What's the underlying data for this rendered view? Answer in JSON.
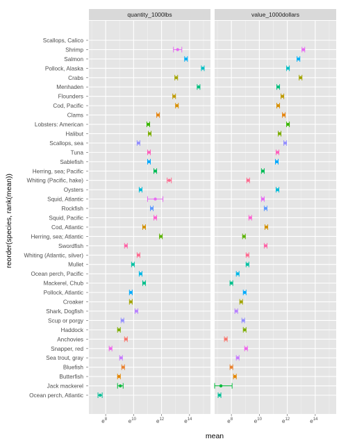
{
  "chart_data": {
    "type": "scatter",
    "xlabel": "mean",
    "ylabel": "reorder(species, rank(mean))",
    "panels": [
      "quantity_1000lbs",
      "value_1000dollars"
    ],
    "xlim": [
      6.8,
      15.5
    ],
    "x_ticks": [
      {
        "value": 8,
        "label": "e",
        "exp": "8"
      },
      {
        "value": 10,
        "label": "e",
        "exp": "10"
      },
      {
        "value": 12,
        "label": "e",
        "exp": "12"
      },
      {
        "value": 14,
        "label": "e",
        "exp": "14"
      }
    ],
    "grid": true,
    "legend": "none",
    "categories": [
      "Scallops, Calico",
      "Shrimp",
      "Salmon",
      "Pollock, Alaska",
      "Crabs",
      "Menhaden",
      "Flounders",
      "Cod, Pacific",
      "Clams",
      "Lobsters: American",
      "Halibut",
      "Scallops, sea",
      "Tuna",
      "Sablefish",
      "Herring, sea; Pacific",
      "Whiting (Pacific, hake)",
      "Oysters",
      "Squid, Atlantic",
      "Rockfish",
      "Squid, Pacific",
      "Cod, Atlantic",
      "Herring, sea; Atlantic",
      "Swordfish",
      "Whiting (Atlantic, silver)",
      "Mullet",
      "Ocean perch, Pacific",
      "Mackerel, Chub",
      "Pollock, Atlantic",
      "Croaker",
      "Shark, Dogfish",
      "Scup or porgy",
      "Haddock",
      "Anchovies",
      "Snapper, red",
      "Sea trout, gray",
      "Bluefish",
      "Butterfish",
      "Jack mackerel",
      "Ocean perch, Atlantic"
    ],
    "colors": [
      "#f564e3",
      "#e76bf3",
      "#00b0f6",
      "#00bfc4",
      "#a3a500",
      "#00bf7d",
      "#c09b00",
      "#d89000",
      "#e68613",
      "#39b600",
      "#7cae00",
      "#9590ff",
      "#ff62bc",
      "#00a9ff",
      "#00bc56",
      "#ff6c91",
      "#00bcd8",
      "#e76bf3",
      "#619cff",
      "#fd61d1",
      "#d39200",
      "#5bb300",
      "#ff66a8",
      "#ff6c91",
      "#00c1a3",
      "#00b8e7",
      "#00c08b",
      "#00abfd",
      "#a3a500",
      "#b983ff",
      "#9590ff",
      "#7cae00",
      "#f8766d",
      "#ef67eb",
      "#c77cff",
      "#ea8331",
      "#e58700",
      "#00ba38",
      "#00bf96"
    ],
    "series": [
      {
        "name": "quantity_1000lbs",
        "points": [
          {
            "x": null
          },
          {
            "x": 13.15,
            "lo": 12.85,
            "hi": 13.45
          },
          {
            "x": 13.75,
            "lo": 13.65,
            "hi": 13.85
          },
          {
            "x": 14.95,
            "lo": 14.85,
            "hi": 15.05
          },
          {
            "x": 13.05,
            "lo": 12.95,
            "hi": 13.15
          },
          {
            "x": 14.65,
            "lo": 14.55,
            "hi": 14.75
          },
          {
            "x": 12.9,
            "lo": 12.8,
            "hi": 13.0
          },
          {
            "x": 13.1,
            "lo": 13.0,
            "hi": 13.2
          },
          {
            "x": 11.75,
            "lo": 11.65,
            "hi": 11.85
          },
          {
            "x": 11.05,
            "lo": 10.95,
            "hi": 11.15
          },
          {
            "x": 11.15,
            "lo": 11.05,
            "hi": 11.25
          },
          {
            "x": 10.35,
            "lo": 10.25,
            "hi": 10.45
          },
          {
            "x": 11.1,
            "lo": 11.0,
            "hi": 11.2
          },
          {
            "x": 11.1,
            "lo": 11.0,
            "hi": 11.2
          },
          {
            "x": 11.55,
            "lo": 11.45,
            "hi": 11.65
          },
          {
            "x": 12.55,
            "lo": 12.4,
            "hi": 12.7
          },
          {
            "x": 10.5,
            "lo": 10.4,
            "hi": 10.6
          },
          {
            "x": 11.55,
            "lo": 11.0,
            "hi": 12.1
          },
          {
            "x": 11.3,
            "lo": 11.2,
            "hi": 11.4
          },
          {
            "x": 11.55,
            "lo": 11.45,
            "hi": 11.65
          },
          {
            "x": 10.75,
            "lo": 10.65,
            "hi": 10.85
          },
          {
            "x": 11.95,
            "lo": 11.85,
            "hi": 12.05
          },
          {
            "x": 9.45,
            "lo": 9.35,
            "hi": 9.55
          },
          {
            "x": 10.35,
            "lo": 10.25,
            "hi": 10.45
          },
          {
            "x": 9.95,
            "lo": 9.85,
            "hi": 10.05
          },
          {
            "x": 10.5,
            "lo": 10.4,
            "hi": 10.6
          },
          {
            "x": 10.75,
            "lo": 10.65,
            "hi": 10.85
          },
          {
            "x": 9.8,
            "lo": 9.7,
            "hi": 9.9
          },
          {
            "x": 9.8,
            "lo": 9.7,
            "hi": 9.9
          },
          {
            "x": 10.2,
            "lo": 10.1,
            "hi": 10.3
          },
          {
            "x": 9.2,
            "lo": 9.1,
            "hi": 9.3
          },
          {
            "x": 8.95,
            "lo": 8.85,
            "hi": 9.05
          },
          {
            "x": 9.45,
            "lo": 9.35,
            "hi": 9.55
          },
          {
            "x": 8.35,
            "lo": 8.25,
            "hi": 8.45
          },
          {
            "x": 9.1,
            "lo": 9.0,
            "hi": 9.2
          },
          {
            "x": 9.25,
            "lo": 9.15,
            "hi": 9.35
          },
          {
            "x": 8.95,
            "lo": 8.85,
            "hi": 9.05
          },
          {
            "x": 9.05,
            "lo": 8.85,
            "hi": 9.25
          },
          {
            "x": 7.6,
            "lo": 7.45,
            "hi": 7.75
          }
        ]
      },
      {
        "name": "value_1000dollars",
        "points": [
          {
            "x": null
          },
          {
            "x": 13.15,
            "lo": 13.05,
            "hi": 13.25
          },
          {
            "x": 12.8,
            "lo": 12.7,
            "hi": 12.9
          },
          {
            "x": 12.05,
            "lo": 11.95,
            "hi": 12.15
          },
          {
            "x": 12.95,
            "lo": 12.85,
            "hi": 13.05
          },
          {
            "x": 11.35,
            "lo": 11.25,
            "hi": 11.45
          },
          {
            "x": 11.65,
            "lo": 11.55,
            "hi": 11.75
          },
          {
            "x": 11.35,
            "lo": 11.25,
            "hi": 11.45
          },
          {
            "x": 11.75,
            "lo": 11.65,
            "hi": 11.85
          },
          {
            "x": 12.05,
            "lo": 11.95,
            "hi": 12.15
          },
          {
            "x": 11.45,
            "lo": 11.35,
            "hi": 11.55
          },
          {
            "x": 11.85,
            "lo": 11.75,
            "hi": 11.95
          },
          {
            "x": 11.3,
            "lo": 11.2,
            "hi": 11.4
          },
          {
            "x": 11.25,
            "lo": 11.15,
            "hi": 11.35
          },
          {
            "x": 10.25,
            "lo": 10.15,
            "hi": 10.35
          },
          {
            "x": 9.2,
            "lo": 9.1,
            "hi": 9.3
          },
          {
            "x": 11.3,
            "lo": 11.2,
            "hi": 11.4
          },
          {
            "x": 10.25,
            "lo": 10.15,
            "hi": 10.35
          },
          {
            "x": 10.45,
            "lo": 10.35,
            "hi": 10.55
          },
          {
            "x": 9.35,
            "lo": 9.25,
            "hi": 9.45
          },
          {
            "x": 10.5,
            "lo": 10.4,
            "hi": 10.6
          },
          {
            "x": 8.9,
            "lo": 8.8,
            "hi": 9.0
          },
          {
            "x": 10.45,
            "lo": 10.35,
            "hi": 10.55
          },
          {
            "x": 9.15,
            "lo": 9.05,
            "hi": 9.25
          },
          {
            "x": 9.15,
            "lo": 9.05,
            "hi": 9.25
          },
          {
            "x": 8.45,
            "lo": 8.35,
            "hi": 8.55
          },
          {
            "x": 8.0,
            "lo": 7.9,
            "hi": 8.1
          },
          {
            "x": 8.95,
            "lo": 8.85,
            "hi": 9.05
          },
          {
            "x": 8.7,
            "lo": 8.6,
            "hi": 8.8
          },
          {
            "x": 8.35,
            "lo": 8.25,
            "hi": 8.45
          },
          {
            "x": 8.85,
            "lo": 8.75,
            "hi": 8.95
          },
          {
            "x": 8.95,
            "lo": 8.85,
            "hi": 9.05
          },
          {
            "x": 7.6,
            "lo": 7.5,
            "hi": 7.7
          },
          {
            "x": 9.05,
            "lo": 8.95,
            "hi": 9.15
          },
          {
            "x": 8.45,
            "lo": 8.35,
            "hi": 8.55
          },
          {
            "x": 8.0,
            "lo": 7.9,
            "hi": 8.1
          },
          {
            "x": 8.25,
            "lo": 8.15,
            "hi": 8.35
          },
          {
            "x": 7.25,
            "lo": 6.8,
            "hi": 8.05
          },
          {
            "x": 7.15,
            "lo": 7.05,
            "hi": 7.25
          }
        ]
      }
    ]
  }
}
